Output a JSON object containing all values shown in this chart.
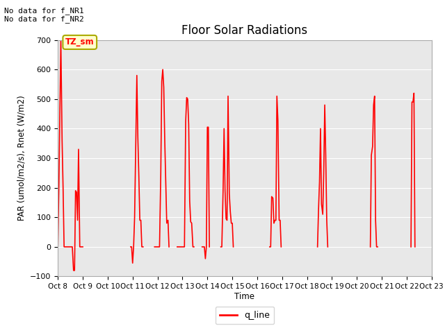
{
  "title": "Floor Solar Radiations",
  "ylabel": "PAR (umol/m2/s), Rnet (W/m2)",
  "xlabel": "Time",
  "ylim": [
    -100,
    700
  ],
  "yticks": [
    -100,
    0,
    100,
    200,
    300,
    400,
    500,
    600,
    700
  ],
  "bg_color": "#e8e8e8",
  "line_color": "red",
  "legend_label": "q_line",
  "annotation_top_left": "No data for f_NR1\nNo data for f_NR2",
  "tz_label": "TZ_sm",
  "x_tick_labels": [
    "Oct 8",
    "Oct 9",
    "Oct 10",
    "Oct 11",
    "Oct 12",
    "Oct 13",
    "Oct 14",
    "Oct 15",
    "Oct 16",
    "Oct 17",
    "Oct 18",
    "Oct 19",
    "Oct 20",
    "Oct 21",
    "Oct 22",
    "Oct 23"
  ],
  "x_tick_positions": [
    0,
    1,
    2,
    3,
    4,
    5,
    6,
    7,
    8,
    9,
    10,
    11,
    12,
    13,
    14,
    15
  ],
  "xlim": [
    0,
    15
  ],
  "line_data_x": [
    0.0,
    0.04,
    0.12,
    0.17,
    0.21,
    0.25,
    0.29,
    0.33,
    0.37,
    0.42,
    0.46,
    0.5,
    0.54,
    0.58,
    0.63,
    0.67,
    0.71,
    0.75,
    0.79,
    0.83,
    0.88,
    0.92,
    0.96,
    1.0,
    null,
    2.92,
    2.96,
    3.0,
    3.04,
    3.08,
    3.13,
    3.17,
    3.21,
    3.25,
    3.29,
    3.33,
    3.37,
    3.42,
    null,
    3.88,
    3.92,
    3.96,
    4.0,
    4.04,
    4.08,
    4.13,
    4.17,
    4.21,
    4.25,
    4.29,
    4.33,
    4.37,
    4.42,
    4.46,
    null,
    4.79,
    4.83,
    4.88,
    4.92,
    4.96,
    5.0,
    5.04,
    5.08,
    5.13,
    5.17,
    5.21,
    5.25,
    5.29,
    5.33,
    5.37,
    5.42,
    5.46,
    null,
    5.79,
    5.83,
    5.88,
    5.92,
    5.96,
    6.0,
    6.04,
    6.08,
    null,
    6.54,
    6.58,
    6.63,
    6.67,
    6.71,
    6.75,
    6.79,
    6.83,
    6.88,
    6.92,
    6.96,
    7.0,
    7.04,
    null,
    8.5,
    8.54,
    8.58,
    8.63,
    8.67,
    8.71,
    8.75,
    8.79,
    8.83,
    8.88,
    8.92,
    8.96,
    null,
    10.42,
    10.46,
    10.5,
    10.54,
    10.58,
    10.63,
    10.67,
    10.71,
    10.75,
    10.79,
    10.83,
    null,
    12.54,
    12.58,
    12.63,
    12.67,
    12.71,
    12.75,
    12.79,
    12.83,
    null,
    14.17,
    14.21,
    14.25,
    14.29,
    14.33
  ],
  "line_data_y": [
    0,
    200,
    700,
    360,
    200,
    0,
    0,
    0,
    0,
    0,
    0,
    0,
    0,
    0,
    -80,
    -80,
    190,
    185,
    90,
    330,
    0,
    0,
    0,
    0,
    null,
    0,
    0,
    -55,
    0,
    100,
    370,
    580,
    370,
    240,
    90,
    90,
    0,
    0,
    null,
    0,
    0,
    0,
    0,
    0,
    0,
    245,
    560,
    600,
    540,
    360,
    220,
    80,
    90,
    0,
    null,
    0,
    0,
    0,
    0,
    0,
    0,
    0,
    0,
    425,
    505,
    500,
    415,
    155,
    85,
    80,
    0,
    0,
    null,
    0,
    0,
    0,
    -40,
    0,
    405,
    405,
    0,
    null,
    0,
    0,
    185,
    400,
    190,
    95,
    90,
    510,
    180,
    120,
    80,
    80,
    0,
    null,
    0,
    0,
    170,
    165,
    80,
    90,
    90,
    510,
    430,
    90,
    90,
    0,
    null,
    0,
    125,
    220,
    400,
    145,
    110,
    250,
    480,
    310,
    90,
    0,
    null,
    0,
    310,
    340,
    480,
    510,
    90,
    0,
    0,
    null,
    0,
    490,
    490,
    520,
    0
  ]
}
